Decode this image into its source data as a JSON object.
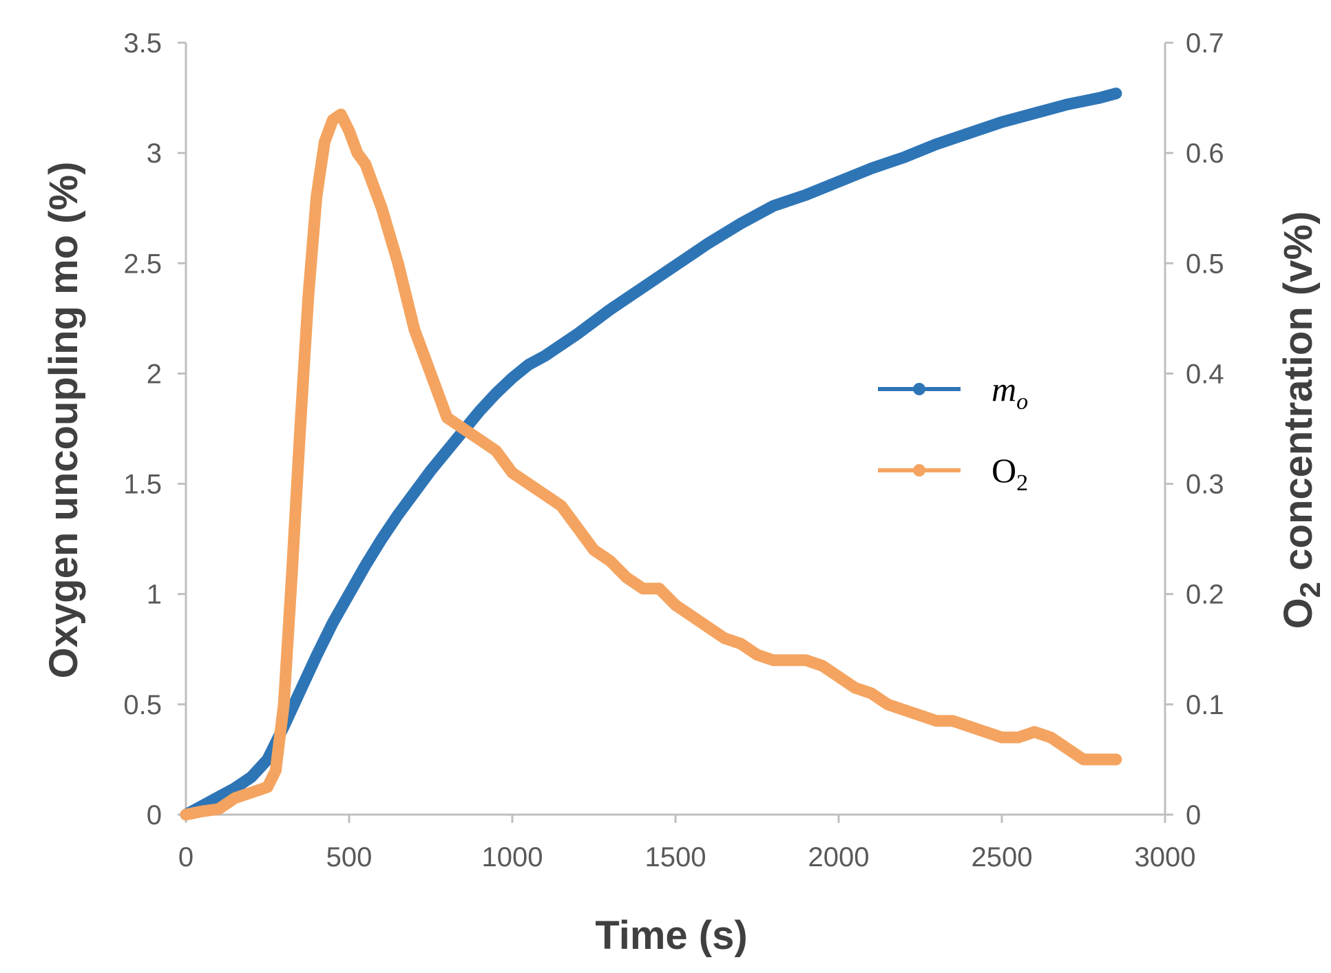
{
  "chart_data": {
    "type": "line",
    "title": "",
    "xlabel": "Time (s)",
    "ylabel_left": "Oxygen uncoupling  mo (%)",
    "ylabel_right_main": "O",
    "ylabel_right_sub": "2",
    "ylabel_right_rest": " concentration (v%)",
    "xlim": [
      0,
      3000
    ],
    "ylim_left": [
      0,
      3.5
    ],
    "ylim_right": [
      0,
      0.7
    ],
    "x_ticks": [
      "0",
      "500",
      "1000",
      "1500",
      "2000",
      "2500",
      "3000"
    ],
    "y_left_ticks": [
      "0",
      "0.5",
      "1",
      "1.5",
      "2",
      "2.5",
      "3",
      "3.5"
    ],
    "y_right_ticks": [
      "0",
      "0.1",
      "0.2",
      "0.3",
      "0.4",
      "0.5",
      "0.6",
      "0.7"
    ],
    "grid": false,
    "legend_position": "center-right",
    "series": [
      {
        "name": "mo",
        "legend_main": "m",
        "legend_sub": "o",
        "axis": "left",
        "color": "#2E75B6",
        "x": [
          0,
          50,
          100,
          150,
          200,
          250,
          300,
          350,
          400,
          450,
          500,
          550,
          600,
          650,
          700,
          750,
          800,
          850,
          900,
          950,
          1000,
          1050,
          1100,
          1150,
          1200,
          1300,
          1400,
          1500,
          1600,
          1700,
          1800,
          1900,
          2000,
          2100,
          2200,
          2300,
          2400,
          2500,
          2600,
          2700,
          2800,
          2850
        ],
        "y": [
          0,
          0.04,
          0.08,
          0.12,
          0.17,
          0.25,
          0.4,
          0.56,
          0.72,
          0.87,
          1.0,
          1.13,
          1.25,
          1.36,
          1.46,
          1.56,
          1.65,
          1.74,
          1.83,
          1.91,
          1.98,
          2.04,
          2.08,
          2.13,
          2.18,
          2.29,
          2.39,
          2.49,
          2.59,
          2.68,
          2.76,
          2.81,
          2.87,
          2.93,
          2.98,
          3.04,
          3.09,
          3.14,
          3.18,
          3.22,
          3.25,
          3.27
        ]
      },
      {
        "name": "O2",
        "legend_main": "O",
        "legend_sub": "2",
        "axis": "right",
        "color": "#F4A460",
        "x": [
          0,
          50,
          100,
          150,
          200,
          250,
          275,
          300,
          325,
          350,
          375,
          400,
          425,
          450,
          475,
          500,
          525,
          550,
          575,
          600,
          650,
          700,
          750,
          800,
          850,
          900,
          950,
          1000,
          1050,
          1100,
          1150,
          1200,
          1250,
          1300,
          1350,
          1400,
          1450,
          1500,
          1550,
          1600,
          1650,
          1700,
          1750,
          1800,
          1850,
          1900,
          1950,
          2000,
          2050,
          2100,
          2150,
          2200,
          2250,
          2300,
          2350,
          2400,
          2450,
          2500,
          2550,
          2600,
          2650,
          2700,
          2750,
          2800,
          2850
        ],
        "y": [
          0.0,
          0.003,
          0.005,
          0.015,
          0.02,
          0.025,
          0.04,
          0.1,
          0.22,
          0.35,
          0.47,
          0.56,
          0.61,
          0.63,
          0.635,
          0.62,
          0.6,
          0.59,
          0.57,
          0.55,
          0.5,
          0.44,
          0.4,
          0.36,
          0.35,
          0.34,
          0.33,
          0.31,
          0.3,
          0.29,
          0.28,
          0.26,
          0.24,
          0.23,
          0.215,
          0.205,
          0.205,
          0.19,
          0.18,
          0.17,
          0.16,
          0.155,
          0.145,
          0.14,
          0.14,
          0.14,
          0.135,
          0.125,
          0.115,
          0.11,
          0.1,
          0.095,
          0.09,
          0.085,
          0.085,
          0.08,
          0.075,
          0.07,
          0.07,
          0.075,
          0.07,
          0.06,
          0.05,
          0.05,
          0.05
        ]
      }
    ]
  }
}
